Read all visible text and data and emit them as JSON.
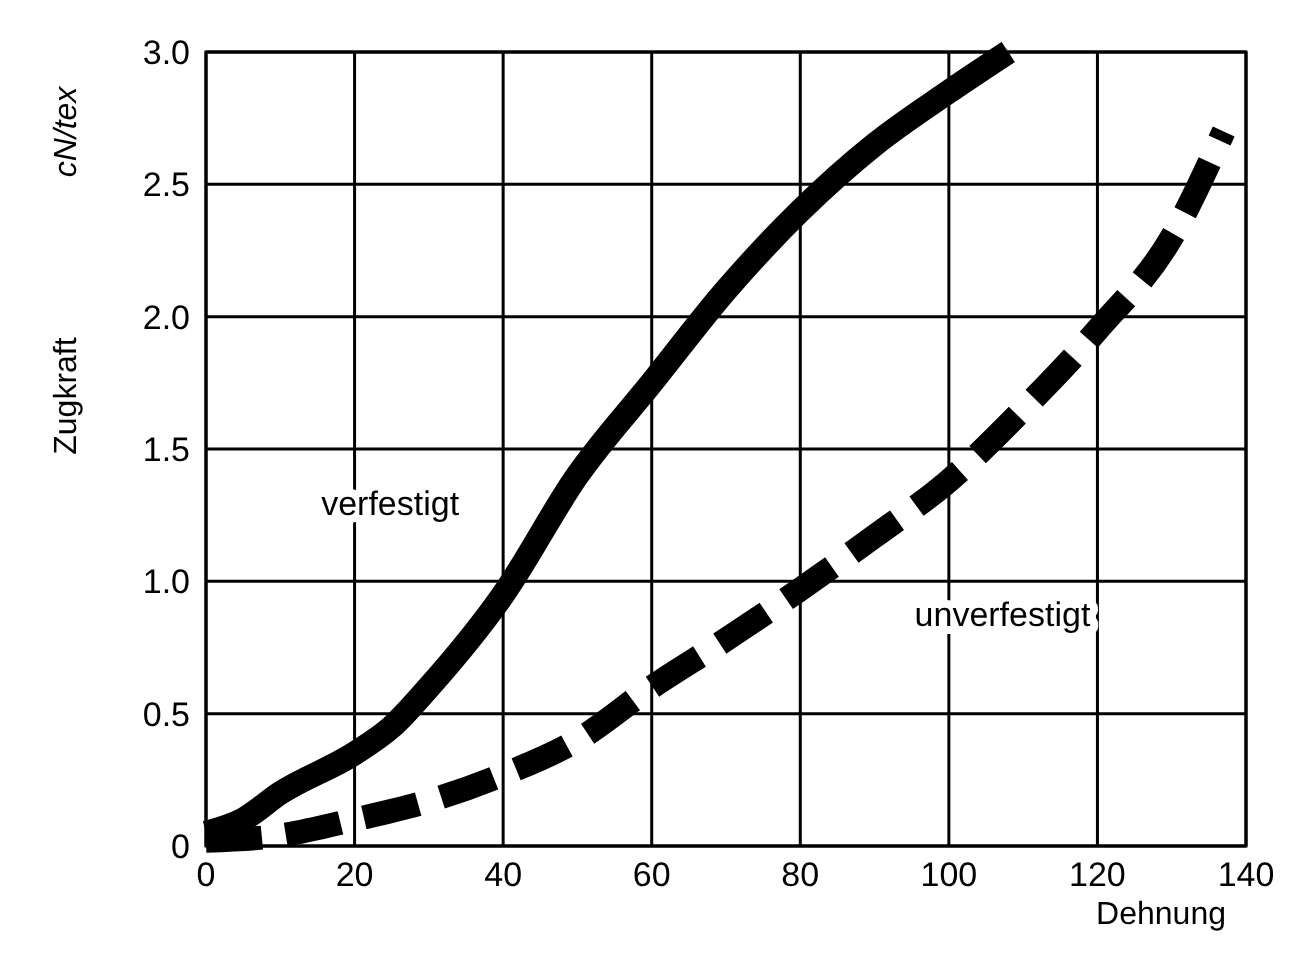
{
  "chart_data": {
    "type": "line",
    "ylabel": "Zugkraft",
    "xlabel": "Dehnung",
    "annotations": [
      "cN/tex"
    ],
    "xlim": [
      0,
      140
    ],
    "ylim": [
      0,
      3
    ],
    "xticks": [
      0,
      20,
      40,
      60,
      80,
      100,
      120,
      140
    ],
    "yticks": [
      0,
      0.5,
      {
        "value": 1,
        "label": "1.0"
      },
      1.5,
      {
        "value": 2,
        "label": "2.0"
      },
      2.5,
      {
        "value": 3,
        "label": "3.0"
      }
    ],
    "grid": true,
    "series": [
      {
        "name": "verfestigt",
        "color": "#000000",
        "line_style": "solid",
        "x": [
          0,
          5,
          10,
          20,
          25,
          30,
          40,
          50,
          60,
          70,
          80,
          90,
          100,
          108
        ],
        "values": [
          0.05,
          0.1,
          0.2,
          0.35,
          0.45,
          0.6,
          0.95,
          1.4,
          1.75,
          2.1,
          2.4,
          2.65,
          2.85,
          3.0
        ]
      },
      {
        "name": "unverfestigt",
        "color": "#000000",
        "line_style": "dashed",
        "x": [
          0,
          10,
          20,
          30,
          40,
          50,
          60,
          70,
          80,
          90,
          100,
          110,
          120,
          130,
          137
        ],
        "values": [
          0.02,
          0.04,
          0.1,
          0.17,
          0.27,
          0.4,
          0.6,
          0.78,
          0.97,
          1.17,
          1.38,
          1.65,
          1.95,
          2.3,
          2.7
        ]
      }
    ]
  }
}
